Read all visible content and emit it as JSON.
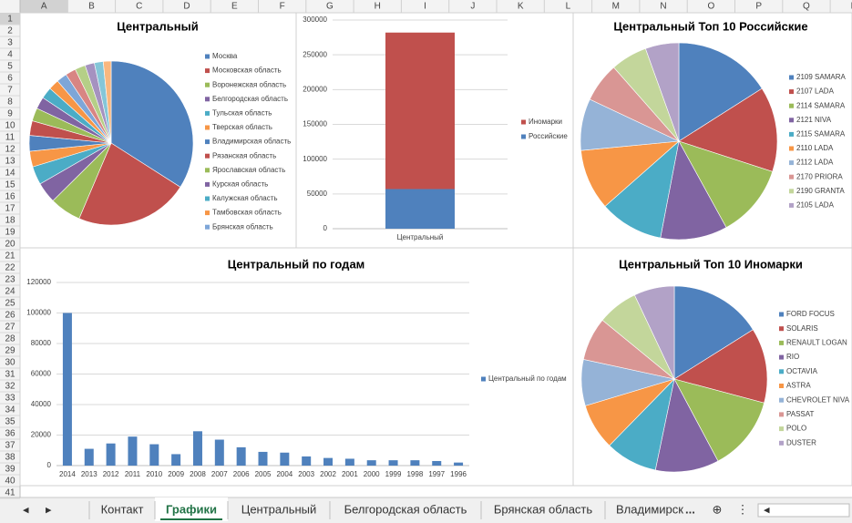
{
  "sheet": {
    "columns": [
      "A",
      "B",
      "C",
      "D",
      "E",
      "F",
      "G",
      "H",
      "I",
      "J",
      "K",
      "L",
      "M",
      "N",
      "O",
      "P",
      "Q",
      "R"
    ],
    "rows": [
      1,
      2,
      3,
      4,
      5,
      6,
      7,
      8,
      9,
      10,
      11,
      12,
      13,
      14,
      15,
      16,
      17,
      18,
      19,
      20,
      21,
      22,
      23,
      24,
      25,
      26,
      27,
      28,
      29,
      30,
      31,
      32,
      33,
      34,
      35,
      36,
      37,
      38,
      39,
      40,
      41
    ],
    "tabs": [
      "Контакт",
      "Графики",
      "Центральный",
      "Белгородская область",
      "Брянская область",
      "Владимирск"
    ],
    "active_tab": 1,
    "more": "..."
  },
  "chart_data": [
    {
      "type": "pie",
      "title": "Центральный",
      "categories": [
        "Москва",
        "Московская область",
        "Воронежская область",
        "Белгородская область",
        "Тульская область",
        "Тверская область",
        "Владимирская область",
        "Рязанская область",
        "Ярославская область",
        "Курская область",
        "Калужская область",
        "Тамбовская область",
        "Брянская область",
        null,
        null,
        null,
        null,
        null
      ],
      "values": [
        33,
        21.7,
        6,
        4,
        3.5,
        3,
        3,
        2.8,
        2.5,
        2.3,
        2.2,
        2,
        2,
        2,
        2,
        1.8,
        1.7,
        1.5
      ],
      "colors": [
        "#4f81bd",
        "#c0504d",
        "#9bbb59",
        "#8064a2",
        "#4bacc6",
        "#f79646",
        "#4f81bd",
        "#c0504d",
        "#9bbb59",
        "#8064a2",
        "#4bacc6",
        "#f79646",
        "#7ea6d8",
        "#d88583",
        "#b5cf87",
        "#a592c0",
        "#84c6d8",
        "#f9b77e"
      ]
    },
    {
      "type": "bar",
      "stacked": true,
      "categories": [
        "Центральный"
      ],
      "series": [
        {
          "name": "Российские",
          "color": "#4f81bd",
          "values": [
            57000
          ]
        },
        {
          "name": "Иномарки",
          "color": "#c0504d",
          "values": [
            225000
          ]
        }
      ],
      "ylim": [
        0,
        300000
      ],
      "yticks": [
        0,
        50000,
        100000,
        150000,
        200000,
        250000,
        300000
      ],
      "grid": true
    },
    {
      "type": "pie",
      "title": "Центральный Топ 10 Российские",
      "categories": [
        "2109 SAMARA",
        "2107 LADA",
        "2114 SAMARA",
        "2121 NIVA",
        "2115 SAMARA",
        "2110 LADA",
        "2112 LADA",
        "2170 PRIORA",
        "2190 GRANTA",
        "2105 LADA"
      ],
      "values": [
        16,
        14,
        12,
        11,
        10.5,
        10,
        8.5,
        6.5,
        6,
        5.5
      ],
      "colors": [
        "#4f81bd",
        "#c0504d",
        "#9bbb59",
        "#8064a2",
        "#4bacc6",
        "#f79646",
        "#95b3d7",
        "#d99694",
        "#c3d69b",
        "#b2a2c7"
      ]
    },
    {
      "type": "bar",
      "title": "Центральный по годам",
      "categories": [
        "2014",
        "2013",
        "2012",
        "2011",
        "2010",
        "2009",
        "2008",
        "2007",
        "2006",
        "2005",
        "2004",
        "2003",
        "2002",
        "2001",
        "2000",
        "1999",
        "1998",
        "1997",
        "1996"
      ],
      "series": [
        {
          "name": "Центральный по годам",
          "color": "#4f81bd",
          "values": [
            100000,
            11000,
            14500,
            19000,
            14000,
            7500,
            22500,
            17000,
            12000,
            9000,
            8500,
            6000,
            5000,
            4500,
            3500,
            3500,
            3500,
            3000,
            2000
          ]
        }
      ],
      "ylim": [
        0,
        120000
      ],
      "yticks": [
        0,
        20000,
        40000,
        60000,
        80000,
        100000,
        120000
      ],
      "grid": true
    },
    {
      "type": "pie",
      "title": "Центральный Топ 10 Иномарки",
      "categories": [
        "FORD FOCUS",
        "SOLARIS",
        "RENAULT LOGAN",
        "RIO",
        "OCTAVIA",
        "ASTRA",
        "CHEVROLET NIVA",
        "PASSAT",
        "POLO",
        "DUSTER"
      ],
      "values": [
        16,
        13,
        13,
        11,
        9,
        8,
        8,
        7.5,
        7,
        7
      ],
      "colors": [
        "#4f81bd",
        "#c0504d",
        "#9bbb59",
        "#8064a2",
        "#4bacc6",
        "#f79646",
        "#95b3d7",
        "#d99694",
        "#c3d69b",
        "#b2a2c7"
      ]
    }
  ]
}
